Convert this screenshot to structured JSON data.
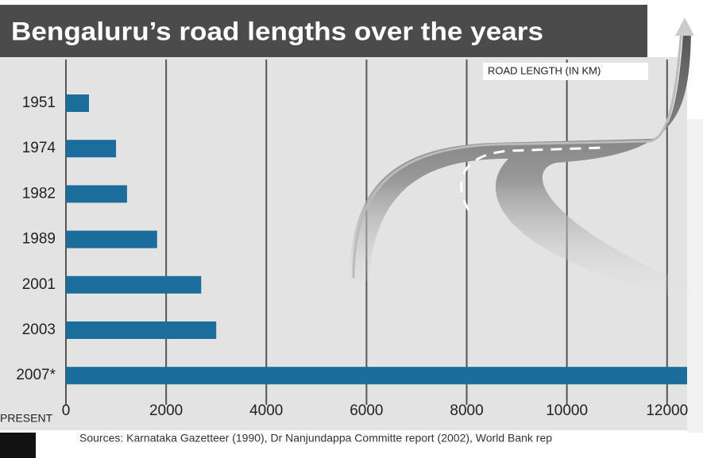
{
  "chart_data": {
    "type": "bar",
    "orientation": "horizontal",
    "title": "Bengaluru’s road lengths over the years",
    "x_label": "ROAD LENGTH (IN KM)",
    "categories": [
      "1951",
      "1974",
      "1982",
      "1989",
      "2001",
      "2003",
      "2007*"
    ],
    "values": [
      460,
      1000,
      1220,
      1820,
      2700,
      3000,
      12400
    ],
    "color": "#1b6d9b",
    "xlim": [
      0,
      12400
    ],
    "xticks": [
      0,
      2000,
      4000,
      6000,
      8000,
      10000,
      12000
    ],
    "grid": true,
    "annotation": "PRESENT",
    "source": "Sources:  Karnataka Gazetteer (1990), Dr Nanjundappa Committe report (2002), World Bank rep"
  }
}
